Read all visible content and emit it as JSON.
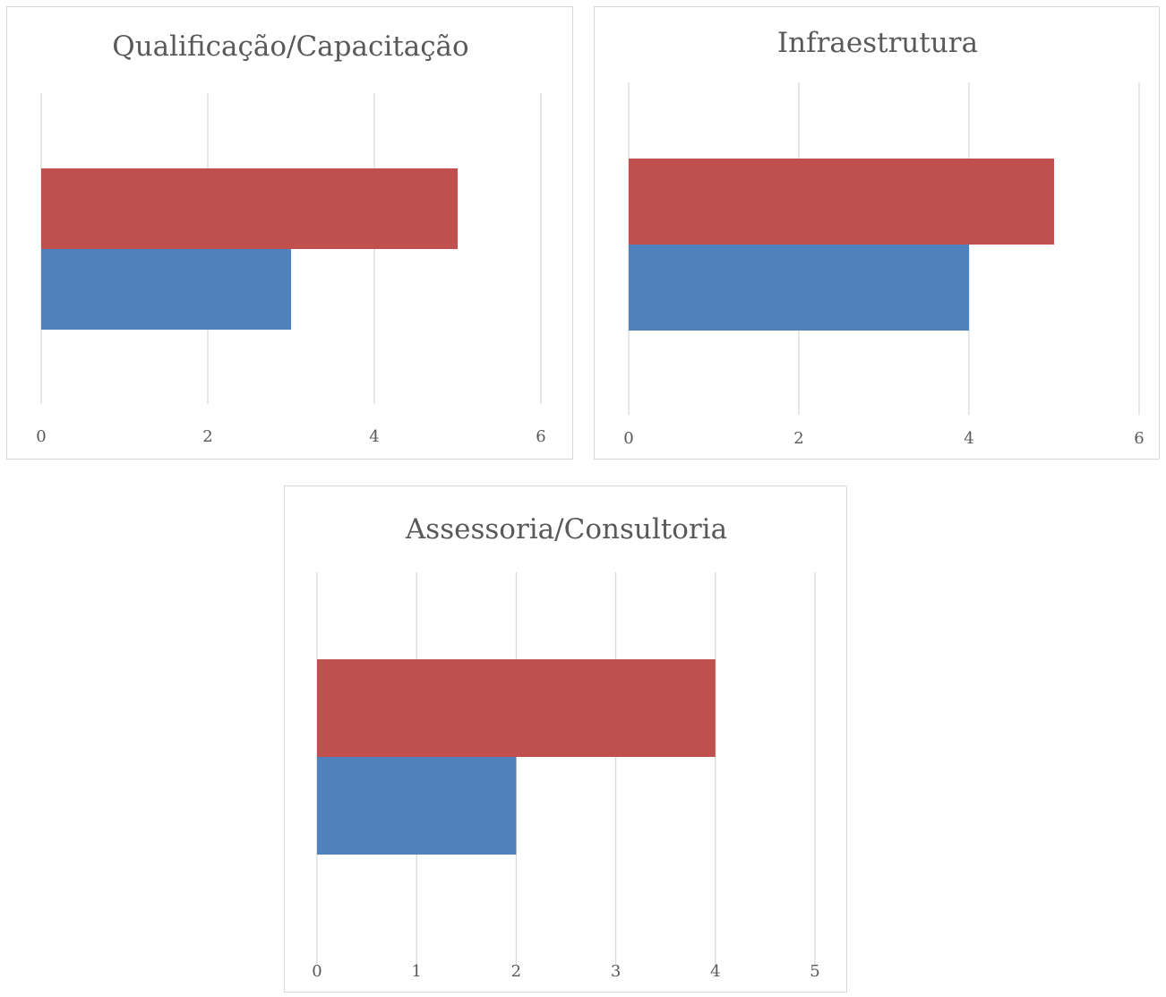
{
  "chart_data": [
    {
      "type": "bar",
      "orientation": "horizontal",
      "title": "Qualificação/Capacitação",
      "series": [
        {
          "values": [
            5
          ],
          "color": "#c0504d"
        },
        {
          "values": [
            3
          ],
          "color": "#4f81bd"
        }
      ],
      "xlim": [
        0,
        6
      ],
      "xticks": [
        "0",
        "2",
        "4",
        "6"
      ],
      "grid": true,
      "legend": "none"
    },
    {
      "type": "bar",
      "orientation": "horizontal",
      "title": "Infraestrutura",
      "series": [
        {
          "values": [
            5
          ],
          "color": "#c0504d"
        },
        {
          "values": [
            4
          ],
          "color": "#4f81bd"
        }
      ],
      "xlim": [
        0,
        6
      ],
      "xticks": [
        "0",
        "2",
        "4",
        "6"
      ],
      "grid": true,
      "legend": "none"
    },
    {
      "type": "bar",
      "orientation": "horizontal",
      "title": "Assessoria/Consultoria",
      "series": [
        {
          "values": [
            4
          ],
          "color": "#c0504d"
        },
        {
          "values": [
            2
          ],
          "color": "#4f81bd"
        }
      ],
      "xlim": [
        0,
        5
      ],
      "xticks": [
        "0",
        "1",
        "2",
        "3",
        "4",
        "5"
      ],
      "grid": true,
      "legend": "none"
    }
  ]
}
